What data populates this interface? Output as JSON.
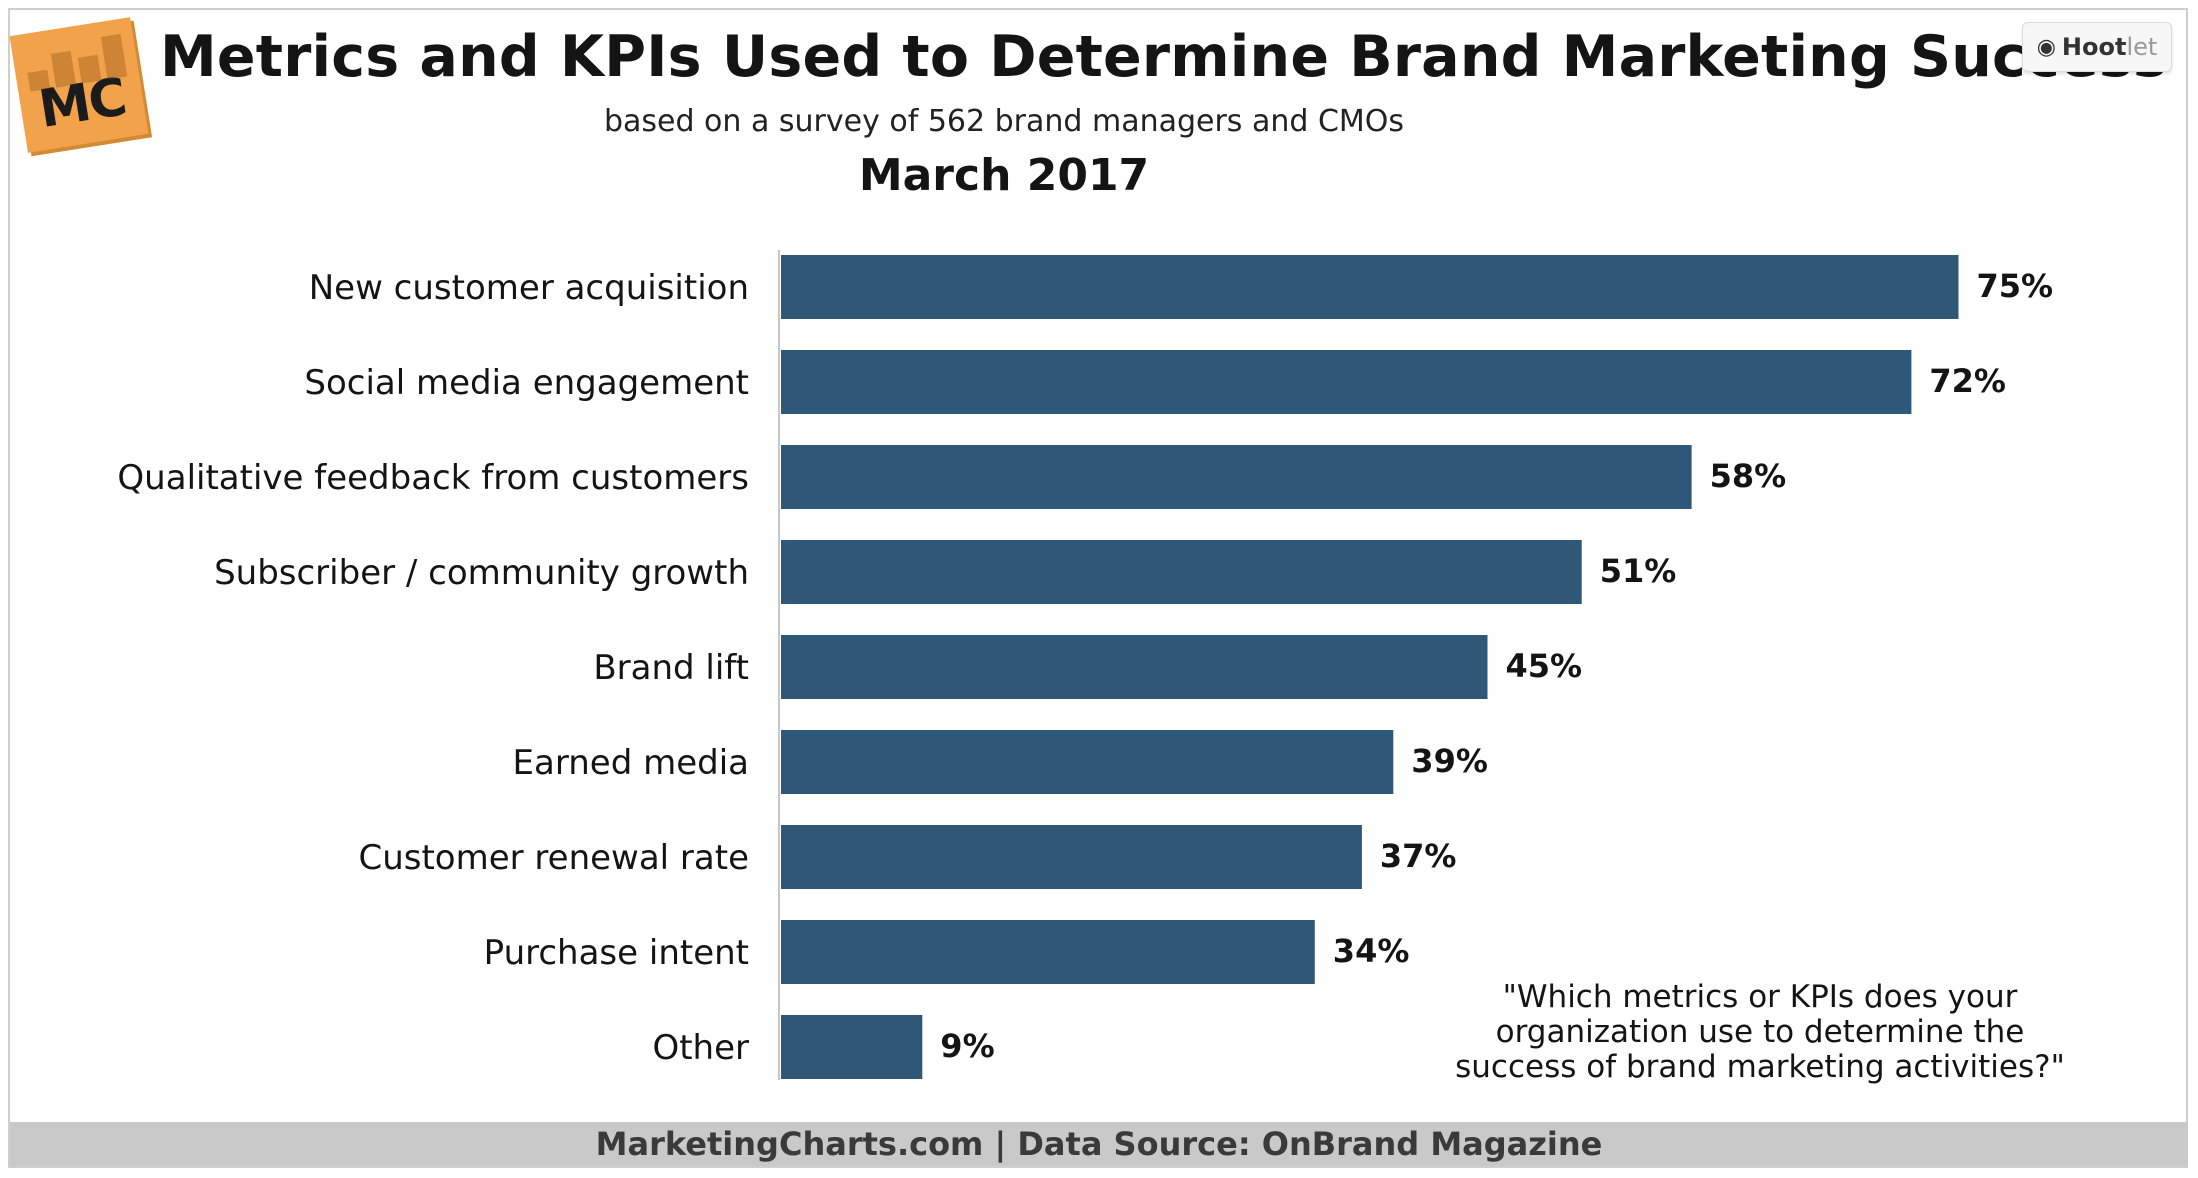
{
  "header": {
    "logo_text": "MC",
    "title": "Metrics and KPIs Used to Determine Brand Marketing Success",
    "subtitle": "based on a survey of 562 brand managers and CMOs",
    "date": "March 2017"
  },
  "hootlet": {
    "label_bold": "Hoot",
    "label_light": "let"
  },
  "chart_data": {
    "type": "bar",
    "orientation": "horizontal",
    "title": "Metrics and KPIs Used to Determine Brand Marketing Success",
    "subtitle": "based on a survey of 562 brand managers and CMOs",
    "xlabel": "",
    "ylabel": "",
    "xlim": [
      0,
      80
    ],
    "grid": false,
    "categories": [
      "New customer acquisition",
      "Social media engagement",
      "Qualitative feedback from customers",
      "Subscriber / community growth",
      "Brand lift",
      "Earned media",
      "Customer renewal rate",
      "Purchase intent",
      "Other"
    ],
    "values": [
      75,
      72,
      58,
      51,
      45,
      39,
      37,
      34,
      9
    ],
    "value_labels": [
      "75%",
      "72%",
      "58%",
      "51%",
      "45%",
      "39%",
      "37%",
      "34%",
      "9%"
    ],
    "bar_color": "#2e5778"
  },
  "annotation": {
    "line1": "\"Which metrics or KPIs does your",
    "line2": "organization use to determine the",
    "line3": "success of brand marketing activities?\""
  },
  "footer": {
    "text": "MarketingCharts.com | Data Source: OnBrand Magazine"
  }
}
